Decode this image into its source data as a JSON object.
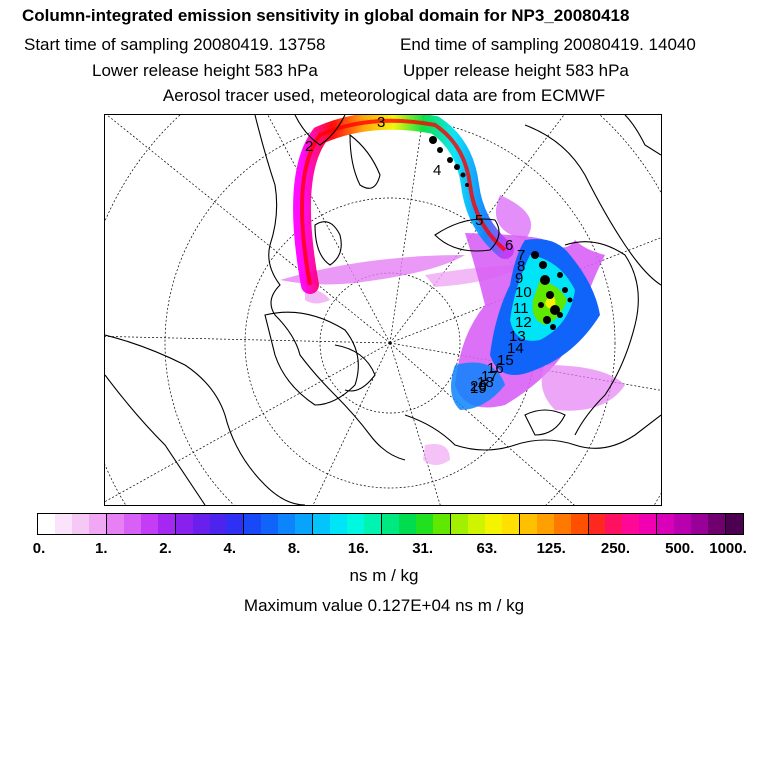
{
  "header": {
    "title": "Column-integrated emission sensitivity in global domain for NP3_20080418",
    "start": "Start time of sampling 20080419. 13758",
    "end": "End time of sampling 20080419. 14040",
    "lower": "Lower release height  583 hPa",
    "upper": "Upper release height  583 hPa",
    "tracer": "Aerosol tracer used, meteorological data are from ECMWF"
  },
  "map": {
    "track_labels": [
      "2",
      "3",
      "4",
      "5",
      "6",
      "7",
      "8",
      "9",
      "10",
      "11",
      "12",
      "13",
      "14",
      "15",
      "16",
      "17",
      "18",
      "19",
      "20"
    ]
  },
  "colorbar": {
    "colors": [
      "#ffffff",
      "#fbe4fb",
      "#f6c8f6",
      "#f0a8f4",
      "#e680f4",
      "#d860f6",
      "#c43cf6",
      "#a428f2",
      "#8a20ee",
      "#6a20ec",
      "#4c24ee",
      "#3030f4",
      "#1848f8",
      "#1064fa",
      "#0c84fc",
      "#08a4fc",
      "#04c4fc",
      "#00e4f8",
      "#00f8e0",
      "#00f4b0",
      "#00e880",
      "#00dc50",
      "#20e020",
      "#60e800",
      "#a0f000",
      "#d0f400",
      "#f4f400",
      "#ffe000",
      "#ffc000",
      "#ffa000",
      "#ff7800",
      "#ff5000",
      "#ff2820",
      "#ff1060",
      "#ff0898",
      "#f000b0",
      "#d800b8",
      "#b800b0",
      "#980098",
      "#700070",
      "#4c0050"
    ],
    "ticks": [
      "0.",
      "1.",
      "2.",
      "4.",
      "8.",
      "16.",
      "31.",
      "63.",
      "125.",
      "250.",
      "500.",
      "1000."
    ]
  },
  "footer": {
    "unit": "ns m / kg",
    "max": "Maximum value  0.127E+04 ns m / kg"
  }
}
